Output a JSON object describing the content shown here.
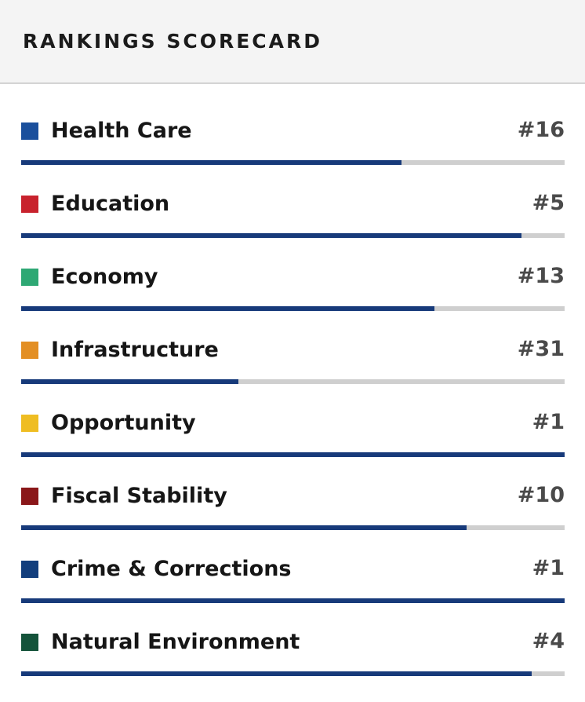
{
  "header": {
    "title": "RANKINGS SCORECARD"
  },
  "rankings": [
    {
      "label": "Health Care",
      "rank": "#16",
      "color": "#1a4f9c",
      "fill_fraction": 0.7
    },
    {
      "label": "Education",
      "rank": "#5",
      "color": "#c8222d",
      "fill_fraction": 0.92
    },
    {
      "label": "Economy",
      "rank": "#13",
      "color": "#2ea874",
      "fill_fraction": 0.76
    },
    {
      "label": "Infrastructure",
      "rank": "#31",
      "color": "#e38f24",
      "fill_fraction": 0.4
    },
    {
      "label": "Opportunity",
      "rank": "#1",
      "color": "#efbd22",
      "fill_fraction": 1.0
    },
    {
      "label": "Fiscal Stability",
      "rank": "#10",
      "color": "#8a1719",
      "fill_fraction": 0.82
    },
    {
      "label": "Crime & Corrections",
      "rank": "#1",
      "color": "#123e7d",
      "fill_fraction": 1.0
    },
    {
      "label": "Natural Environment",
      "rank": "#4",
      "color": "#14533a",
      "fill_fraction": 0.94
    }
  ],
  "bar_fill_color": "#173a7a",
  "bar_track_color": "#cfcfcf"
}
